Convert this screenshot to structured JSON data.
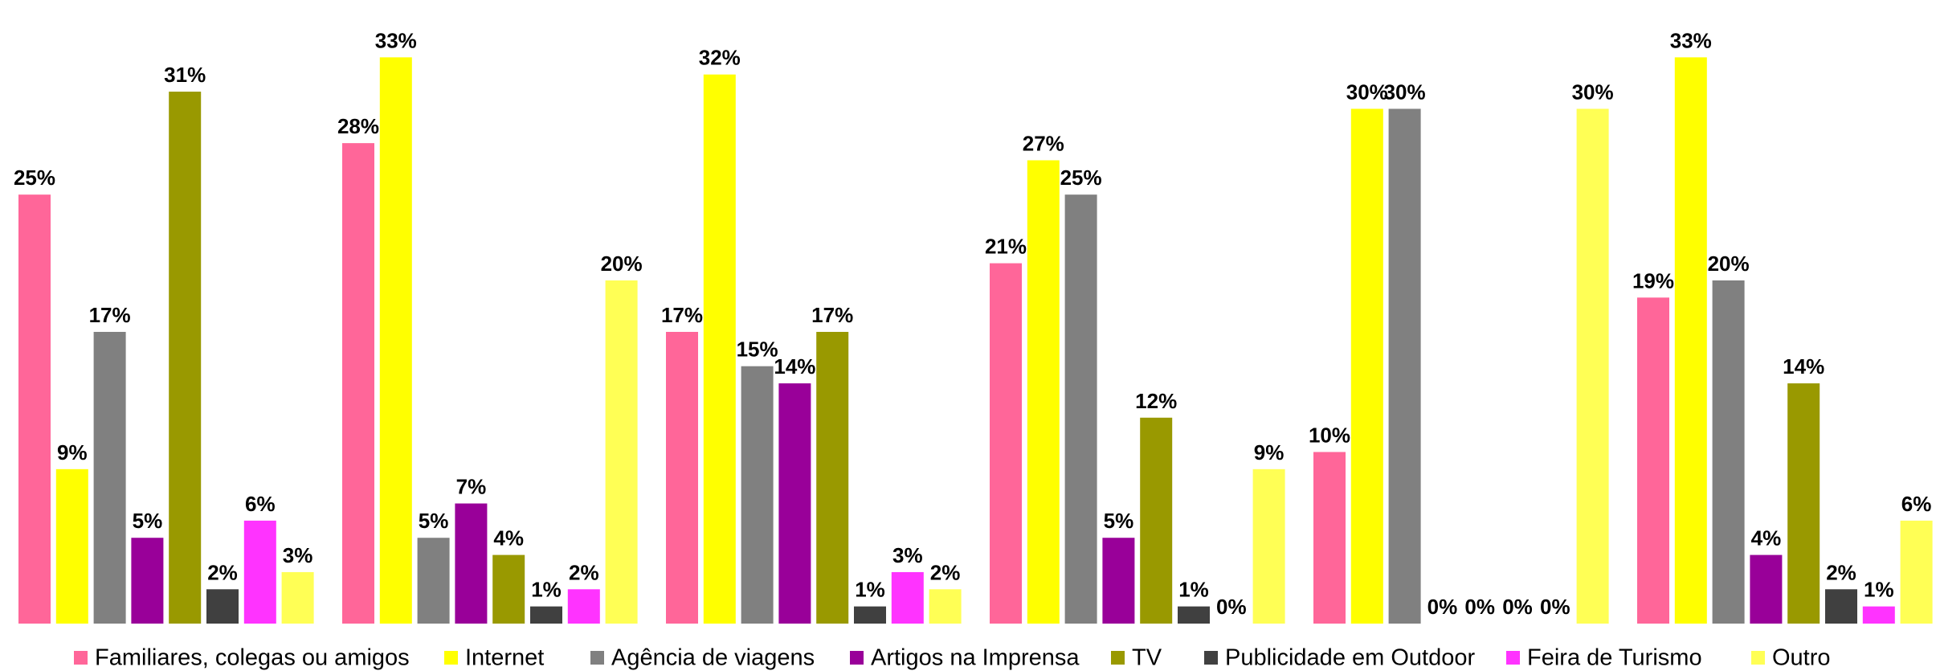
{
  "chart_data": {
    "type": "bar",
    "categories": [
      null,
      null,
      null,
      null,
      null,
      null
    ],
    "ylim": [
      0,
      34
    ],
    "series": [
      {
        "name": "Familiares, colegas ou amigos",
        "color": "#ff6699",
        "values": [
          25,
          28,
          17,
          21,
          10,
          19
        ],
        "value_labels": [
          "25%",
          "28%",
          "17%",
          "21%",
          "10%",
          "19%"
        ]
      },
      {
        "name": "Internet",
        "color": "#ffff00",
        "values": [
          9,
          33,
          32,
          27,
          30,
          33
        ],
        "value_labels": [
          "9%",
          "33%",
          "32%",
          "27%",
          "30%",
          "33%"
        ]
      },
      {
        "name": "Agência de viagens",
        "color": "#808080",
        "values": [
          17,
          5,
          15,
          25,
          30,
          20
        ],
        "value_labels": [
          "17%",
          "5%",
          "15%",
          "25%",
          "30%",
          "20%"
        ]
      },
      {
        "name": "Artigos na Imprensa",
        "color": "#990099",
        "values": [
          5,
          7,
          14,
          5,
          0,
          4
        ],
        "value_labels": [
          "5%",
          "7%",
          "14%",
          "5%",
          "0%",
          "4%"
        ]
      },
      {
        "name": "TV",
        "color": "#999900",
        "values": [
          31,
          4,
          17,
          12,
          0,
          14
        ],
        "value_labels": [
          "31%",
          "4%",
          "17%",
          "12%",
          "0%",
          "14%"
        ]
      },
      {
        "name": "Publicidade em Outdoor",
        "color": "#404040",
        "values": [
          2,
          1,
          1,
          1,
          0,
          2
        ],
        "value_labels": [
          "2%",
          "1%",
          "1%",
          "1%",
          "0%",
          "2%"
        ]
      },
      {
        "name": "Feira de Turismo",
        "color": "#ff33ff",
        "values": [
          6,
          2,
          3,
          0,
          0,
          1
        ],
        "value_labels": [
          "6%",
          "2%",
          "3%",
          "0%",
          "0%",
          "1%"
        ]
      },
      {
        "name": "Outro",
        "color": "#ffff55",
        "values": [
          3,
          20,
          2,
          9,
          30,
          6
        ],
        "value_labels": [
          "3%",
          "20%",
          "2%",
          "9%",
          "30%",
          "6%"
        ]
      }
    ],
    "legend": "bottom"
  }
}
